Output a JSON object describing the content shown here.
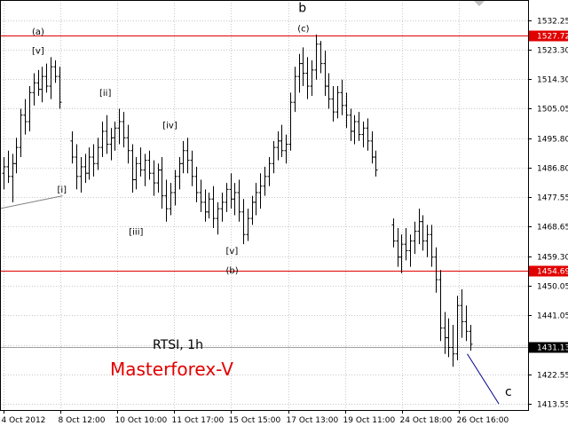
{
  "chart_data": {
    "type": "bar",
    "symbol_label": "RTSI, 1h",
    "brand_label": "Masterforex-V",
    "colors": {
      "background": "#ffffff",
      "bars": "#000000",
      "grid": "#c8c8c8",
      "level_line": "#e00000",
      "brand_text": "#e00000",
      "projection_line": "#00008b",
      "trend_line": "#808080"
    },
    "y_ticks": [
      1532.25,
      1523.3,
      1514.3,
      1505.05,
      1495.8,
      1486.8,
      1477.55,
      1468.65,
      1459.3,
      1450.05,
      1441.05,
      1431.8,
      1422.55,
      1413.55
    ],
    "ylim": [
      1411.6,
      1538.7
    ],
    "x_ticks": [
      "4 Oct 2012",
      "8 Oct 12:00",
      "10 Oct 10:00",
      "11 Oct 17:00",
      "15 Oct 15:00",
      "17 Oct 13:00",
      "19 Oct 11:00",
      "24 Oct 18:00",
      "26 Oct 16:00"
    ],
    "grid": true,
    "levels": [
      {
        "value": 1527.72,
        "label": "1527.72"
      },
      {
        "value": 1454.69,
        "label": "1454.69"
      }
    ],
    "current_price": {
      "value": 1431.13,
      "label": "1431.13"
    },
    "bars": [
      [
        1485,
        1490,
        1480,
        1487
      ],
      [
        1487,
        1492,
        1482,
        1484
      ],
      [
        1484,
        1491,
        1476,
        1488
      ],
      [
        1488,
        1496,
        1485,
        1493
      ],
      [
        1493,
        1505,
        1490,
        1503
      ],
      [
        1503,
        1508,
        1497,
        1501
      ],
      [
        1501,
        1512,
        1498,
        1510
      ],
      [
        1510,
        1516,
        1506,
        1513
      ],
      [
        1513,
        1517,
        1509,
        1511
      ],
      [
        1511,
        1518,
        1507,
        1515
      ],
      [
        1515,
        1519,
        1510,
        1512
      ],
      [
        1512,
        1521,
        1508,
        1518
      ],
      [
        1518,
        1520,
        1513,
        1515
      ],
      [
        1515,
        1518,
        1505,
        1507
      ],
      [
        1495,
        1498,
        1488,
        1490
      ],
      [
        1490,
        1494,
        1480,
        1484
      ],
      [
        1484,
        1490,
        1479,
        1487
      ],
      [
        1487,
        1491,
        1482,
        1485
      ],
      [
        1485,
        1493,
        1483,
        1490
      ],
      [
        1490,
        1494,
        1484,
        1488
      ],
      [
        1488,
        1496,
        1486,
        1493
      ],
      [
        1493,
        1501,
        1490,
        1498
      ],
      [
        1498,
        1503,
        1491,
        1494
      ],
      [
        1494,
        1499,
        1489,
        1496
      ],
      [
        1496,
        1501,
        1492,
        1499
      ],
      [
        1499,
        1505,
        1494,
        1501
      ],
      [
        1501,
        1504,
        1493,
        1496
      ],
      [
        1496,
        1500,
        1488,
        1492
      ],
      [
        1492,
        1494,
        1479,
        1483
      ],
      [
        1483,
        1490,
        1480,
        1488
      ],
      [
        1488,
        1493,
        1484,
        1486
      ],
      [
        1486,
        1491,
        1481,
        1489
      ],
      [
        1489,
        1492,
        1483,
        1485
      ],
      [
        1485,
        1489,
        1478,
        1482
      ],
      [
        1482,
        1488,
        1479,
        1486
      ],
      [
        1486,
        1490,
        1474,
        1478
      ],
      [
        1478,
        1483,
        1470,
        1474
      ],
      [
        1474,
        1482,
        1472,
        1479
      ],
      [
        1479,
        1486,
        1475,
        1484
      ],
      [
        1484,
        1490,
        1480,
        1488
      ],
      [
        1488,
        1495,
        1485,
        1492
      ],
      [
        1492,
        1496,
        1485,
        1489
      ],
      [
        1489,
        1492,
        1481,
        1484
      ],
      [
        1484,
        1487,
        1476,
        1479
      ],
      [
        1479,
        1483,
        1473,
        1476
      ],
      [
        1476,
        1480,
        1470,
        1473
      ],
      [
        1473,
        1479,
        1471,
        1477
      ],
      [
        1477,
        1481,
        1468,
        1471
      ],
      [
        1471,
        1476,
        1466,
        1474
      ],
      [
        1474,
        1479,
        1470,
        1476
      ],
      [
        1476,
        1482,
        1473,
        1480
      ],
      [
        1480,
        1485,
        1474,
        1477
      ],
      [
        1477,
        1482,
        1472,
        1479
      ],
      [
        1479,
        1483,
        1470,
        1473
      ],
      [
        1473,
        1477,
        1463,
        1466
      ],
      [
        1466,
        1474,
        1464,
        1471
      ],
      [
        1471,
        1478,
        1469,
        1476
      ],
      [
        1476,
        1482,
        1472,
        1479
      ],
      [
        1479,
        1485,
        1474,
        1481
      ],
      [
        1481,
        1487,
        1478,
        1484
      ],
      [
        1484,
        1490,
        1481,
        1488
      ],
      [
        1488,
        1495,
        1485,
        1493
      ],
      [
        1493,
        1498,
        1489,
        1495
      ],
      [
        1495,
        1500,
        1490,
        1492
      ],
      [
        1492,
        1497,
        1488,
        1494
      ],
      [
        1494,
        1510,
        1492,
        1507
      ],
      [
        1507,
        1518,
        1504,
        1515
      ],
      [
        1515,
        1522,
        1510,
        1519
      ],
      [
        1519,
        1524,
        1512,
        1516
      ],
      [
        1516,
        1521,
        1508,
        1512
      ],
      [
        1512,
        1520,
        1509,
        1517
      ],
      [
        1517,
        1528,
        1514,
        1525
      ],
      [
        1525,
        1526,
        1516,
        1519
      ],
      [
        1519,
        1523,
        1509,
        1512
      ],
      [
        1512,
        1516,
        1505,
        1508
      ],
      [
        1508,
        1512,
        1501,
        1504
      ],
      [
        1504,
        1512,
        1502,
        1510
      ],
      [
        1510,
        1514,
        1503,
        1506
      ],
      [
        1506,
        1510,
        1499,
        1503
      ],
      [
        1503,
        1505,
        1495,
        1498
      ],
      [
        1498,
        1503,
        1494,
        1501
      ],
      [
        1501,
        1504,
        1495,
        1497
      ],
      [
        1497,
        1501,
        1493,
        1499
      ],
      [
        1499,
        1502,
        1492,
        1495
      ],
      [
        1495,
        1498,
        1488,
        1490
      ],
      [
        1490,
        1492,
        1484,
        1486
      ],
      [
        1469,
        1471,
        1462,
        1464
      ],
      [
        1464,
        1468,
        1456,
        1459
      ],
      [
        1459,
        1466,
        1454,
        1463
      ],
      [
        1463,
        1468,
        1458,
        1461
      ],
      [
        1461,
        1466,
        1456,
        1464
      ],
      [
        1464,
        1470,
        1460,
        1467
      ],
      [
        1467,
        1474,
        1463,
        1470
      ],
      [
        1470,
        1472,
        1461,
        1464
      ],
      [
        1464,
        1469,
        1459,
        1466
      ],
      [
        1466,
        1469,
        1456,
        1459
      ],
      [
        1459,
        1462,
        1448,
        1452
      ],
      [
        1452,
        1455,
        1433,
        1437
      ],
      [
        1437,
        1442,
        1429,
        1434
      ],
      [
        1434,
        1440,
        1428,
        1431
      ],
      [
        1431,
        1438,
        1425,
        1429
      ],
      [
        1429,
        1447,
        1427,
        1444
      ],
      [
        1444,
        1449,
        1434,
        1439
      ],
      [
        1439,
        1444,
        1433,
        1436
      ],
      [
        1436,
        1438,
        1430,
        1432
      ]
    ],
    "wave_labels": [
      {
        "text": "(a)",
        "x": 8,
        "y": 1528
      },
      {
        "text": "[v]",
        "x": 8,
        "y": 1522
      },
      {
        "text": "[i]",
        "x": 14,
        "y": 1479
      },
      {
        "text": "[ii]",
        "x": 24,
        "y": 1509
      },
      {
        "text": "[iii]",
        "x": 31,
        "y": 1466
      },
      {
        "text": "[iv]",
        "x": 39,
        "y": 1499
      },
      {
        "text": "[v]",
        "x": 54,
        "y": 1460
      },
      {
        "text": "(b)",
        "x": 54,
        "y": 1454
      },
      {
        "text": "(c)",
        "x": 71,
        "y": 1529
      }
    ],
    "wave_labels_large": [
      {
        "text": "b",
        "x": 71,
        "y": 1535
      },
      {
        "text": "c",
        "x": 120,
        "y": 1416
      }
    ],
    "projection": [
      [
        110,
        1429
      ],
      [
        117.5,
        1413.5
      ]
    ],
    "trend_line": [
      [
        -1,
        1474
      ],
      [
        14,
        1478
      ]
    ],
    "bar_count_slots": 123
  }
}
